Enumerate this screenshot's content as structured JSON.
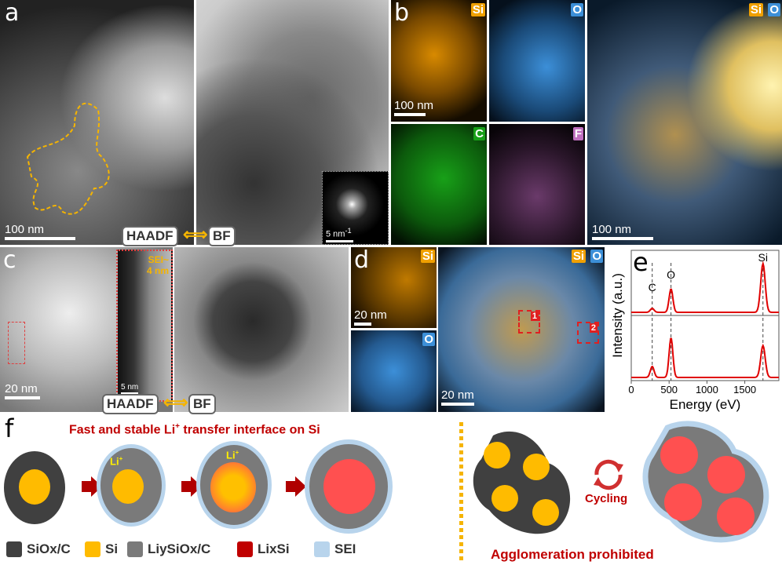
{
  "panels": {
    "a": {
      "label": "a",
      "scale": "100 nm",
      "left_mode": "HAADF",
      "right_mode": "BF",
      "inset_scale": "5 nm",
      "inset_scale_sup": "-1"
    },
    "b": {
      "label": "b",
      "maps": [
        "Si",
        "O",
        "C",
        "F"
      ],
      "scale": "100 nm",
      "overlay_tags": [
        "Si",
        "O"
      ],
      "overlay_scale": "100 nm"
    },
    "c": {
      "label": "c",
      "scale": "20 nm",
      "inset_text_1": "SEI~",
      "inset_text_2": "4 nm",
      "inset_scale": "5 nm",
      "left_mode": "HAADF",
      "right_mode": "BF"
    },
    "d": {
      "label": "d",
      "maps": [
        "Si",
        "O"
      ],
      "scale": "20 nm",
      "overlay_tags": [
        "Si",
        "O"
      ],
      "overlay_scale": "20 nm",
      "regions": [
        "1",
        "2"
      ]
    },
    "e": {
      "label": "e"
    },
    "f": {
      "label": "f",
      "title_pre": "Fast and stable Li",
      "title_sup": "+",
      "title_post": " transfer interface on Si",
      "li_label": "Li",
      "li_sup": "+",
      "cycling": "Cycling",
      "agglomeration": "Agglomeration prohibited",
      "legend": [
        {
          "label": "SiOx/C",
          "color": "#404040"
        },
        {
          "label": "Si",
          "color": "#ffbb00"
        },
        {
          "label": "LiySiOx/C",
          "color": "#7a7a7a"
        },
        {
          "label": "LixSi",
          "color": "#c00000"
        },
        {
          "label": "SEI",
          "color": "#b8d4ec"
        }
      ]
    }
  },
  "colors": {
    "si": "#f0a000",
    "o": "#3c8fd8",
    "c": "#18a018",
    "f": "#c070c0",
    "title_red": "#c00000",
    "lixsi_core": "#ff5050"
  },
  "chart_data": {
    "type": "line",
    "xlabel": "Energy (eV)",
    "ylabel": "Intensity (a.u.)",
    "xlim": [
      0,
      1950
    ],
    "xticks": [
      0,
      500,
      1000,
      1500
    ],
    "peak_labels": [
      {
        "text": "C",
        "x": 277
      },
      {
        "text": "O",
        "x": 525
      },
      {
        "text": "Si",
        "x": 1740
      }
    ],
    "series": [
      {
        "region": "1",
        "peaks": [
          {
            "x": 277,
            "height": 0.08
          },
          {
            "x": 525,
            "height": 0.48
          },
          {
            "x": 1740,
            "height": 1.0
          }
        ]
      },
      {
        "region": "2",
        "peaks": [
          {
            "x": 277,
            "height": 0.2
          },
          {
            "x": 525,
            "height": 0.72
          },
          {
            "x": 1740,
            "height": 0.58
          }
        ]
      }
    ]
  }
}
